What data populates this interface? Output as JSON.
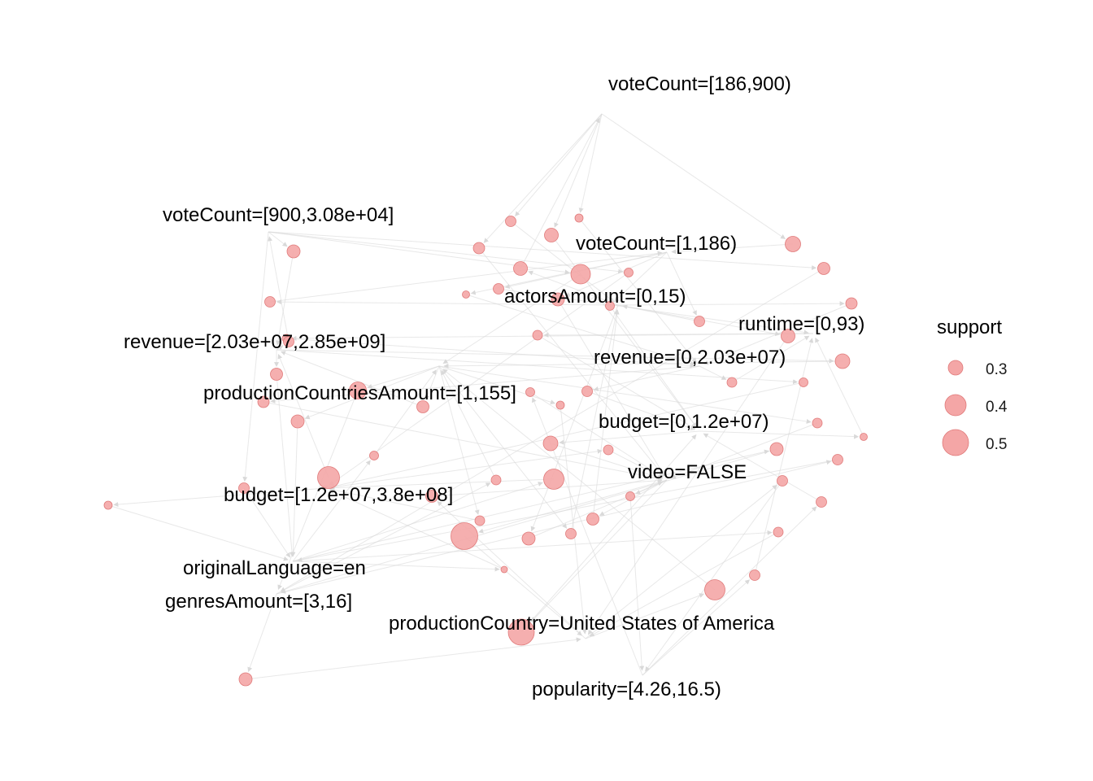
{
  "colors": {
    "background": "#ffffff",
    "edge": "#d9d9d9",
    "node_fill": "#f4a6a6",
    "node_stroke": "#e07a7a"
  },
  "items": [
    "voteCount=[186,900)",
    "voteCount=[900,3.08e+04]",
    "voteCount=[1,186)",
    "actorsAmount=[0,15)",
    "runtime=[0,93)",
    "revenue=[2.03e+07,2.85e+09]",
    "revenue=[0,2.03e+07)",
    "productionCountriesAmount=[1,155]",
    "budget=[0,1.2e+07)",
    "video=FALSE",
    "budget=[1.2e+07,3.8e+08]",
    "originalLanguage=en",
    "genresAmount=[3,16]",
    "productionCountry=United States of America",
    "popularity=[4.26,16.5)"
  ],
  "rule_support": [
    0.3,
    0.27,
    0.34,
    0.31,
    0.36,
    0.33,
    0.41,
    0.28,
    0.32,
    0.3,
    0.26,
    0.33,
    0.28,
    0.3,
    0.31,
    0.34,
    0.29,
    0.27,
    0.35,
    0.28,
    0.32,
    0.3,
    0.31,
    0.27,
    0.33,
    0.29,
    0.26,
    0.35,
    0.44,
    0.29,
    0.33,
    0.42,
    0.3,
    0.29,
    0.3,
    0.32,
    0.5,
    0.28,
    0.3,
    0.32,
    0.3,
    0.33,
    0.29,
    0.3,
    0.42,
    0.27,
    0.33,
    0.49,
    0.3,
    0.29,
    0.28,
    0.3,
    0.32,
    0.29,
    0.34,
    0.3,
    0.38,
    0.28,
    0.25
  ],
  "legend": {
    "title": "support",
    "entries": [
      {
        "label": "0.3",
        "value": 0.3
      },
      {
        "label": "0.4",
        "value": 0.4
      },
      {
        "label": "0.5",
        "value": 0.5
      }
    ]
  }
}
